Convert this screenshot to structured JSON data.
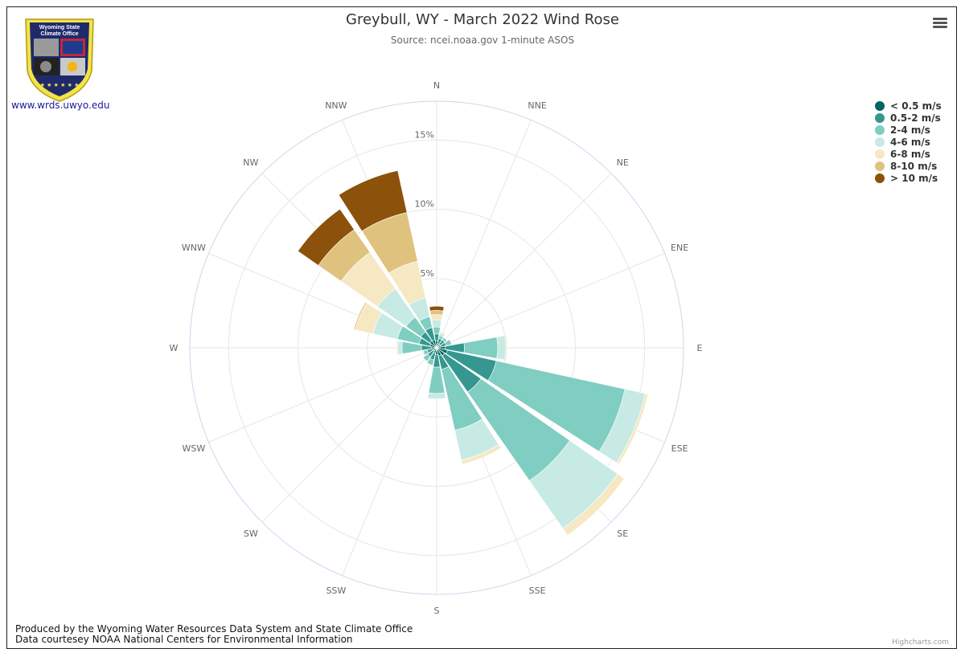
{
  "title": "Greybull, WY - March 2022 Wind Rose",
  "subtitle": "Source: ncei.noaa.gov 1-minute ASOS",
  "logo": {
    "text_top": "Wyoming State",
    "text_bottom": "Climate Office",
    "link": "www.wrds.uwyo.edu"
  },
  "footer": {
    "line1": "Produced by the Wyoming Water Resources Data System and State Climate Office",
    "line2": "Data courtesey NOAA National Centers for Environmental Information"
  },
  "credits": "Highcharts.com",
  "menu_icon": "hamburger-icon",
  "chart_data": {
    "type": "windrose",
    "title": "Greybull, WY - March 2022 Wind Rose",
    "subtitle": "Source: ncei.noaa.gov 1-minute ASOS",
    "categories": [
      "N",
      "NNE",
      "NE",
      "ENE",
      "E",
      "ESE",
      "SE",
      "SSE",
      "S",
      "SSW",
      "SW",
      "WSW",
      "W",
      "WNW",
      "NW",
      "NNW"
    ],
    "radial_ticks": [
      5,
      10,
      15
    ],
    "radial_tick_labels": [
      "5%",
      "10%",
      "15%"
    ],
    "rmax": 17.8,
    "stacking": "normal",
    "series": [
      {
        "name": "< 0.5 m/s",
        "color": "#01665e",
        "values": [
          0.5,
          0.3,
          0.3,
          0.3,
          0.6,
          0.8,
          0.7,
          0.6,
          0.5,
          0.4,
          0.3,
          0.3,
          0.4,
          0.5,
          0.6,
          0.6
        ]
      },
      {
        "name": "0.5-2 m/s",
        "color": "#35978f",
        "values": [
          0.5,
          0.4,
          0.4,
          0.4,
          1.4,
          3.6,
          3.2,
          1.0,
          0.9,
          0.5,
          0.5,
          0.4,
          0.7,
          0.8,
          0.8,
          0.9
        ]
      },
      {
        "name": "2-4 m/s",
        "color": "#80cdc1",
        "values": [
          0.5,
          0.2,
          0.2,
          0.4,
          2.4,
          9.5,
          7.8,
          4.5,
          1.9,
          0.4,
          0.4,
          0.3,
          1.4,
          1.6,
          1.3,
          0.8
        ]
      },
      {
        "name": "4-6 m/s",
        "color": "#c7eae5",
        "values": [
          0.5,
          0.2,
          0.0,
          0.0,
          0.6,
          1.5,
          4.2,
          2.2,
          0.4,
          0.0,
          0.0,
          0.0,
          0.3,
          1.8,
          2.5,
          1.4
        ]
      },
      {
        "name": "6-8 m/s",
        "color": "#f6e8c3",
        "values": [
          0.4,
          0.1,
          0.0,
          0.0,
          0.1,
          0.2,
          0.6,
          0.3,
          0.0,
          0.0,
          0.0,
          0.0,
          0.1,
          1.3,
          3.2,
          2.7
        ]
      },
      {
        "name": "8-10 m/s",
        "color": "#dfc27d",
        "values": [
          0.3,
          0.0,
          0.0,
          0.0,
          0.0,
          0.0,
          0.0,
          0.0,
          0.0,
          0.0,
          0.0,
          0.0,
          0.0,
          0.1,
          2.0,
          3.6
        ]
      },
      {
        "name": "> 10 m/s",
        "color": "#8c510a",
        "values": [
          0.3,
          0.0,
          0.0,
          0.0,
          0.0,
          0.0,
          0.0,
          0.0,
          0.0,
          0.0,
          0.0,
          0.0,
          0.0,
          0.0,
          1.8,
          3.1
        ]
      }
    ]
  }
}
